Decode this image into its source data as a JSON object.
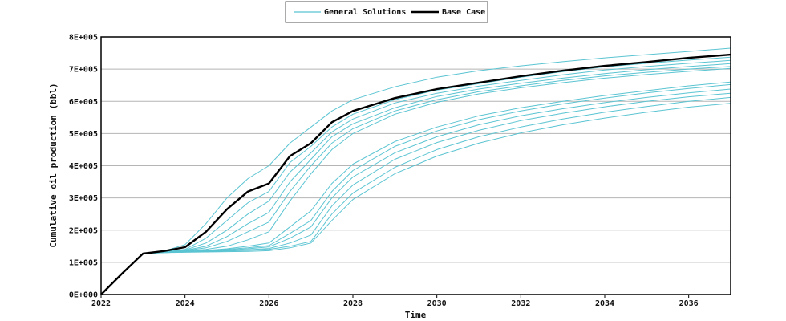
{
  "chart_data": {
    "type": "line",
    "xlabel": "Time",
    "ylabel": "Cumulative oil production (bbl)",
    "xlim": [
      2022,
      2037
    ],
    "ylim": [
      0,
      800000
    ],
    "x_ticks": [
      2022,
      2024,
      2026,
      2028,
      2030,
      2032,
      2034,
      2036
    ],
    "y_ticks": [
      "0E+000",
      "1E+005",
      "2E+005",
      "3E+005",
      "4E+005",
      "5E+005",
      "6E+005",
      "7E+005",
      "8E+005"
    ],
    "grid": "horizontal",
    "legend_position": "top-center",
    "legend": [
      {
        "label": "General Solutions",
        "color": "#5bc4d2"
      },
      {
        "label": "Base Case",
        "color": "#000000"
      }
    ],
    "series": [
      {
        "name": "Base Case",
        "color": "#000000",
        "x": [
          2022,
          2022.5,
          2023,
          2023.5,
          2024,
          2024.5,
          2025,
          2025.5,
          2026,
          2026.5,
          2027,
          2027.5,
          2028,
          2029,
          2030,
          2031,
          2032,
          2033,
          2034,
          2035,
          2036,
          2037
        ],
        "y": [
          0,
          65000,
          127000,
          135000,
          147000,
          195000,
          265000,
          320000,
          345000,
          430000,
          470000,
          535000,
          570000,
          610000,
          638000,
          658000,
          678000,
          695000,
          710000,
          722000,
          735000,
          745000
        ]
      },
      {
        "name": "General Solutions",
        "color": "#5bc4d2",
        "x": [
          2022,
          2022.5,
          2023,
          2023.5,
          2024,
          2024.5,
          2025,
          2025.5,
          2026,
          2026.5,
          2027,
          2027.5,
          2028,
          2029,
          2030,
          2031,
          2032,
          2033,
          2034,
          2035,
          2036,
          2037
        ],
        "y": [
          0,
          65000,
          127000,
          135000,
          155000,
          220000,
          300000,
          360000,
          400000,
          470000,
          520000,
          570000,
          605000,
          645000,
          675000,
          695000,
          710000,
          723000,
          735000,
          745000,
          755000,
          765000
        ]
      },
      {
        "name": "General Solutions",
        "color": "#5bc4d2",
        "x": [
          2022,
          2022.5,
          2023,
          2023.5,
          2024,
          2024.5,
          2025,
          2025.5,
          2026,
          2026.5,
          2027,
          2027.5,
          2028,
          2029,
          2030,
          2031,
          2032,
          2033,
          2034,
          2035,
          2036,
          2037
        ],
        "y": [
          0,
          65000,
          127000,
          134000,
          140000,
          175000,
          230000,
          285000,
          320000,
          410000,
          460000,
          520000,
          560000,
          605000,
          635000,
          655000,
          675000,
          692000,
          707000,
          718000,
          728000,
          737000
        ]
      },
      {
        "name": "General Solutions",
        "color": "#5bc4d2",
        "x": [
          2022,
          2022.5,
          2023,
          2023.5,
          2024,
          2024.5,
          2025,
          2025.5,
          2026,
          2026.5,
          2027,
          2027.5,
          2028,
          2029,
          2030,
          2031,
          2032,
          2033,
          2034,
          2035,
          2036,
          2037
        ],
        "y": [
          0,
          65000,
          127000,
          133000,
          138000,
          160000,
          200000,
          250000,
          290000,
          380000,
          440000,
          505000,
          545000,
          595000,
          625000,
          647000,
          665000,
          682000,
          697000,
          708000,
          718000,
          727000
        ]
      },
      {
        "name": "General Solutions",
        "color": "#5bc4d2",
        "x": [
          2022,
          2022.5,
          2023,
          2023.5,
          2024,
          2024.5,
          2025,
          2025.5,
          2026,
          2026.5,
          2027,
          2027.5,
          2028,
          2029,
          2030,
          2031,
          2032,
          2033,
          2034,
          2035,
          2036,
          2037
        ],
        "y": [
          0,
          65000,
          127000,
          133000,
          137000,
          150000,
          180000,
          220000,
          255000,
          350000,
          420000,
          490000,
          530000,
          580000,
          615000,
          638000,
          656000,
          672000,
          686000,
          698000,
          708000,
          717000
        ]
      },
      {
        "name": "General Solutions",
        "color": "#5bc4d2",
        "x": [
          2022,
          2022.5,
          2023,
          2023.5,
          2024,
          2024.5,
          2025,
          2025.5,
          2026,
          2026.5,
          2027,
          2027.5,
          2028,
          2029,
          2030,
          2031,
          2032,
          2033,
          2034,
          2035,
          2036,
          2037
        ],
        "y": [
          0,
          65000,
          127000,
          132000,
          136000,
          145000,
          165000,
          195000,
          225000,
          320000,
          400000,
          470000,
          515000,
          570000,
          605000,
          630000,
          648000,
          665000,
          679000,
          690000,
          700000,
          708000
        ]
      },
      {
        "name": "General Solutions",
        "color": "#5bc4d2",
        "x": [
          2022,
          2022.5,
          2023,
          2023.5,
          2024,
          2024.5,
          2025,
          2025.5,
          2026,
          2026.5,
          2027,
          2027.5,
          2028,
          2029,
          2030,
          2031,
          2032,
          2033,
          2034,
          2035,
          2036,
          2037
        ],
        "y": [
          0,
          65000,
          127000,
          132000,
          135000,
          140000,
          150000,
          170000,
          195000,
          290000,
          375000,
          450000,
          500000,
          560000,
          597000,
          623000,
          642000,
          658000,
          672000,
          683000,
          693000,
          702000
        ]
      },
      {
        "name": "General Solutions",
        "color": "#5bc4d2",
        "x": [
          2022,
          2022.5,
          2023,
          2023.5,
          2024,
          2024.5,
          2025,
          2025.5,
          2026,
          2026.5,
          2027,
          2027.5,
          2028,
          2029,
          2030,
          2031,
          2032,
          2033,
          2034,
          2035,
          2036,
          2037
        ],
        "y": [
          0,
          65000,
          127000,
          131000,
          134000,
          137000,
          142000,
          150000,
          160000,
          210000,
          260000,
          345000,
          405000,
          475000,
          520000,
          555000,
          580000,
          600000,
          618000,
          633000,
          648000,
          660000
        ]
      },
      {
        "name": "General Solutions",
        "color": "#5bc4d2",
        "x": [
          2022,
          2022.5,
          2023,
          2023.5,
          2024,
          2024.5,
          2025,
          2025.5,
          2026,
          2026.5,
          2027,
          2027.5,
          2028,
          2029,
          2030,
          2031,
          2032,
          2033,
          2034,
          2035,
          2036,
          2037
        ],
        "y": [
          0,
          65000,
          127000,
          131000,
          134000,
          136000,
          140000,
          145000,
          152000,
          190000,
          230000,
          320000,
          385000,
          460000,
          508000,
          543000,
          570000,
          592000,
          610000,
          626000,
          640000,
          652000
        ]
      },
      {
        "name": "General Solutions",
        "color": "#5bc4d2",
        "x": [
          2022,
          2022.5,
          2023,
          2023.5,
          2024,
          2024.5,
          2025,
          2025.5,
          2026,
          2026.5,
          2027,
          2027.5,
          2028,
          2029,
          2030,
          2031,
          2032,
          2033,
          2034,
          2035,
          2036,
          2037
        ],
        "y": [
          0,
          65000,
          127000,
          131000,
          133000,
          135000,
          138000,
          142000,
          148000,
          175000,
          210000,
          300000,
          365000,
          440000,
          490000,
          527000,
          555000,
          577000,
          596000,
          612000,
          626000,
          638000
        ]
      },
      {
        "name": "General Solutions",
        "color": "#5bc4d2",
        "x": [
          2022,
          2022.5,
          2023,
          2023.5,
          2024,
          2024.5,
          2025,
          2025.5,
          2026,
          2026.5,
          2027,
          2027.5,
          2028,
          2029,
          2030,
          2031,
          2032,
          2033,
          2034,
          2035,
          2036,
          2037
        ],
        "y": [
          0,
          65000,
          127000,
          130000,
          132000,
          134000,
          136000,
          139000,
          143000,
          160000,
          185000,
          275000,
          340000,
          420000,
          472000,
          510000,
          540000,
          563000,
          583000,
          600000,
          614000,
          625000
        ]
      },
      {
        "name": "General Solutions",
        "color": "#5bc4d2",
        "x": [
          2022,
          2022.5,
          2023,
          2023.5,
          2024,
          2024.5,
          2025,
          2025.5,
          2026,
          2026.5,
          2027,
          2027.5,
          2028,
          2029,
          2030,
          2031,
          2032,
          2033,
          2034,
          2035,
          2036,
          2037
        ],
        "y": [
          0,
          65000,
          127000,
          130000,
          132000,
          133000,
          135000,
          137000,
          140000,
          150000,
          165000,
          250000,
          315000,
          395000,
          450000,
          490000,
          520000,
          545000,
          566000,
          584000,
          600000,
          612000
        ]
      },
      {
        "name": "General Solutions",
        "color": "#5bc4d2",
        "x": [
          2022,
          2022.5,
          2023,
          2023.5,
          2024,
          2024.5,
          2025,
          2025.5,
          2026,
          2026.5,
          2027,
          2027.5,
          2028,
          2029,
          2030,
          2031,
          2032,
          2033,
          2034,
          2035,
          2036,
          2037
        ],
        "y": [
          0,
          65000,
          127000,
          130000,
          131000,
          132000,
          133000,
          134000,
          136000,
          145000,
          160000,
          230000,
          295000,
          375000,
          430000,
          470000,
          502000,
          527000,
          548000,
          566000,
          582000,
          594000
        ]
      }
    ]
  }
}
